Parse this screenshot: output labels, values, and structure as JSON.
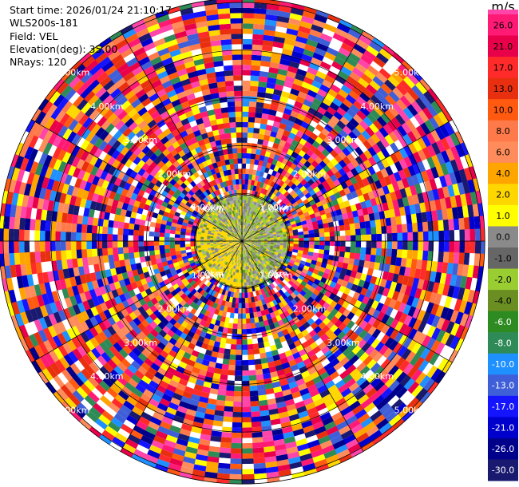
{
  "header": {
    "start_time": "Start time: 2026/01/24 21:10:17",
    "instrument": "WLS200s-181",
    "field": "Field: VEL",
    "elevation": "Elevation(deg): 35.00",
    "nrays": "NRays: 120"
  },
  "colorbar": {
    "unit": "m/s",
    "ticks": [
      "26.0",
      "21.0",
      "17.0",
      "13.0",
      "10.0",
      "8.0",
      "6.0",
      "4.0",
      "2.0",
      "1.0",
      "0.0",
      "-1.0",
      "-2.0",
      "-4.0",
      "-6.0",
      "-8.0",
      "-10.0",
      "-13.0",
      "-17.0",
      "-21.0",
      "-26.0",
      "-30.0"
    ],
    "colors": [
      "#ff44aa",
      "#ff1a75",
      "#e8004a",
      "#ff2a2a",
      "#e83010",
      "#ff5a10",
      "#ff7a4a",
      "#ff8c5a",
      "#ffa500",
      "#ffd700",
      "#ffff00",
      "#8a8a8a",
      "#666666",
      "#9acd32",
      "#6b8e23",
      "#2e8b22",
      "#2e8b57",
      "#1e90ff",
      "#3f5fd8",
      "#1414ff",
      "#0000cd",
      "#00008b",
      "#191970"
    ]
  },
  "chart_data": {
    "type": "ppi",
    "field": "VEL",
    "unit": "m/s",
    "elevation_deg": 35.0,
    "nrays": 120,
    "range_rings_km": [
      {
        "label": "1.00km",
        "range": 1.0
      },
      {
        "label": "2.00km",
        "range": 2.0
      },
      {
        "label": "3.00km",
        "range": 3.0
      },
      {
        "label": "4.00km",
        "range": 4.0
      },
      {
        "label": "5.00km",
        "range": 5.0
      }
    ],
    "inner_label": "1.0km",
    "max_range_km": 5.85,
    "inner_valid_range_km": 1.0
  }
}
